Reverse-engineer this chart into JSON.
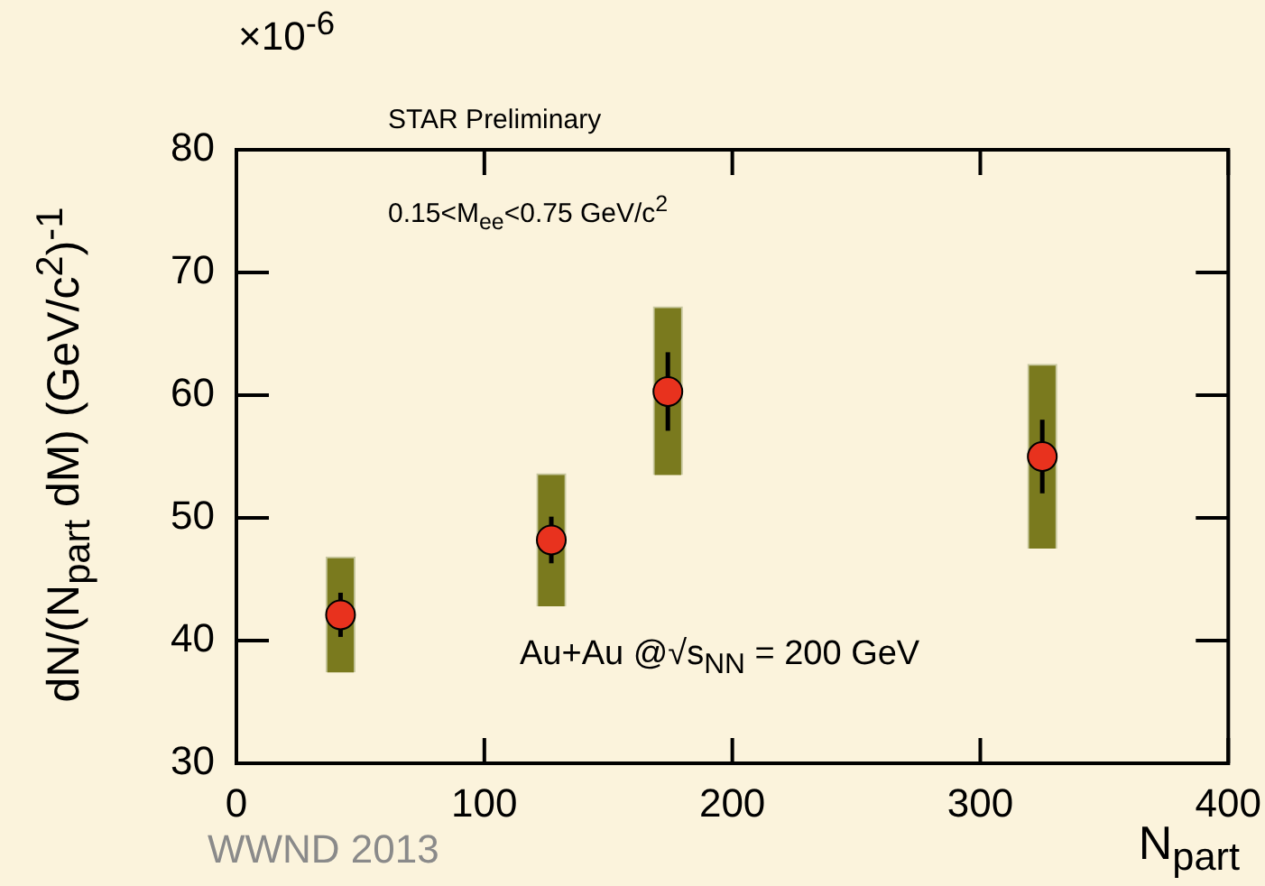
{
  "chart_data": {
    "type": "scatter",
    "xlabel": "N$_{part}$",
    "ylabel": "dN/(N$_{part}$ dM) (GeV/c$^{2}$)$^{-1}$",
    "annotations": [
      "×10$^{-6}$",
      "STAR Preliminary",
      "0.15<M$_{ee}$<0.75 GeV/c$^{2}$",
      "Au+Au @√s$_{NN}$ = 200 GeV",
      "WWND 2013"
    ],
    "series": [
      {
        "type": "bar",
        "color": "#7a7a1e",
        "x": [
          42,
          127,
          174,
          325
        ],
        "base": [
          37.4,
          42.8,
          53.5,
          47.5
        ],
        "values": [
          9.4,
          10.8,
          13.7,
          15.0
        ]
      },
      {
        "color": "#e8321e",
        "x": [
          42,
          127,
          174,
          325
        ],
        "values": [
          42.1,
          48.2,
          60.3,
          55.0
        ],
        "errors": [
          1.8,
          1.9,
          3.2,
          3.0
        ],
        "marker": "circle"
      }
    ],
    "xlim": [
      0,
      400
    ],
    "xticks": [
      0,
      100,
      200,
      300,
      400
    ],
    "ylim": [
      30,
      80
    ],
    "yticks": [
      30,
      40,
      50,
      60,
      70,
      80
    ]
  }
}
